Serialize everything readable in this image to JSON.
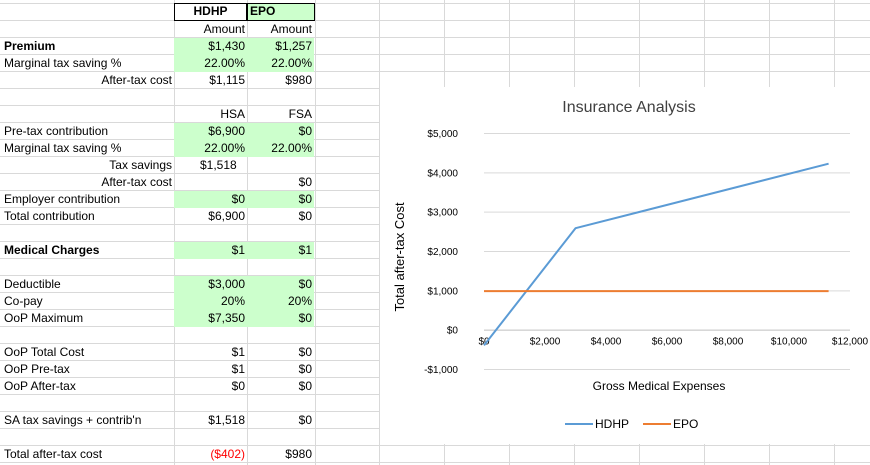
{
  "table": {
    "col_headers": {
      "hdhp": "HDHP",
      "epo": "EPO"
    },
    "premium_section": {
      "amount_hdhp": "Amount",
      "amount_epo": "Amount",
      "premium": {
        "label": "Premium",
        "hdhp": "$1,430",
        "epo": "$1,257"
      },
      "marginal_tax": {
        "label": "Marginal tax saving %",
        "hdhp": "22.00%",
        "epo": "22.00%"
      },
      "after_tax_cost": {
        "label": "After-tax cost",
        "hdhp": "$1,115",
        "epo": "$980"
      }
    },
    "account_section": {
      "hsa": "HSA",
      "fsa": "FSA",
      "pretax_contribution": {
        "label": "Pre-tax contribution",
        "hdhp": "$6,900",
        "epo": "$0"
      },
      "marginal_tax": {
        "label": "Marginal tax saving %",
        "hdhp": "22.00%",
        "epo": "22.00%"
      },
      "tax_savings": {
        "label": "Tax savings",
        "hdhp": "$1,518",
        "epo": ""
      },
      "after_tax_cost": {
        "label": "After-tax cost",
        "hdhp": "",
        "epo": "$0"
      },
      "employer_contribution": {
        "label": "Employer contribution",
        "hdhp": "$0",
        "epo": "$0"
      },
      "total_contribution": {
        "label": "Total contribution",
        "hdhp": "$6,900",
        "epo": "$0"
      }
    },
    "medical_charges": {
      "label": "Medical Charges",
      "hdhp": "$1",
      "epo": "$1"
    },
    "plan_section": {
      "deductible": {
        "label": "Deductible",
        "hdhp": "$3,000",
        "epo": "$0"
      },
      "copay": {
        "label": "Co-pay",
        "hdhp": "20%",
        "epo": "20%"
      },
      "oop_max": {
        "label": "OoP Maximum",
        "hdhp": "$7,350",
        "epo": "$0"
      }
    },
    "oop_section": {
      "total_cost": {
        "label": "OoP Total Cost",
        "hdhp": "$1",
        "epo": "$0"
      },
      "pretax": {
        "label": "OoP Pre-tax",
        "hdhp": "$1",
        "epo": "$0"
      },
      "aftertax": {
        "label": "OoP After-tax",
        "hdhp": "$0",
        "epo": "$0"
      }
    },
    "sa_tax_savings": {
      "label": "SA tax savings + contrib'n",
      "hdhp": "$1,518",
      "epo": "$0"
    },
    "total_after_tax": {
      "label": "Total after-tax cost",
      "hdhp": "($402)",
      "epo": "$980"
    }
  },
  "colors": {
    "input_fill": "#ccffcc",
    "negative": "#ff0000",
    "hdhp_series": "#5b9bd5",
    "epo_series": "#ed7d31",
    "gridline": "#d9d9d9"
  },
  "chart_data": {
    "type": "line",
    "title": "Insurance Analysis",
    "xlabel": "Gross Medical Expenses",
    "ylabel": "Total after-tax Cost",
    "xlim": [
      0,
      12000
    ],
    "ylim": [
      -1000,
      5000
    ],
    "x_tick_labels": [
      "$0",
      "$2,000",
      "$4,000",
      "$6,000",
      "$8,000",
      "$10,000",
      "$12,000"
    ],
    "y_tick_labels": [
      "-$1,000",
      "$0",
      "$1,000",
      "$2,000",
      "$3,000",
      "$4,000",
      "$5,000"
    ],
    "x_ticks": [
      0,
      2000,
      4000,
      6000,
      8000,
      10000,
      12000
    ],
    "y_ticks": [
      -1000,
      0,
      1000,
      2000,
      3000,
      4000,
      5000
    ],
    "grid": true,
    "legend": "bottom",
    "series": [
      {
        "name": "HDHP",
        "x": [
          0,
          3000,
          11300
        ],
        "y": [
          -400,
          2580,
          4220
        ]
      },
      {
        "name": "EPO",
        "x": [
          0,
          11300
        ],
        "y": [
          980,
          980
        ]
      }
    ]
  }
}
